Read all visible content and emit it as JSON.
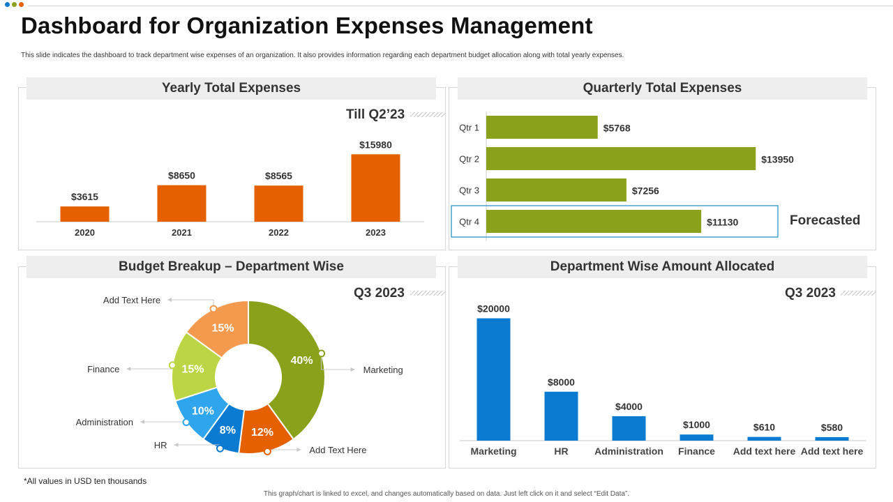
{
  "header": {
    "title": "Dashboard for Organization Expenses Management",
    "subtitle": "This slide indicates the dashboard to track department wise expenses of an organization. It also provides information regarding each department budget allocation along with total yearly expenses."
  },
  "colors": {
    "orange": "#E46000",
    "olive": "#8AA11B",
    "blue": "#0A7BD0",
    "pie_green": "#8AA11B",
    "pie_orange": "#E46000",
    "pie_blue": "#0A7BD0",
    "pie_lightblue": "#2FA5EE",
    "pie_lightgreen": "#BCD544",
    "pie_peach": "#F39A4E"
  },
  "panels": {
    "yearly": {
      "title": "Yearly Total Expenses",
      "period": "Till Q2’23"
    },
    "quarterly": {
      "title": "Quarterly Total Expenses",
      "forecast_label": "Forecasted"
    },
    "budget": {
      "title": "Budget Breakup – Department Wise",
      "period": "Q3 2023"
    },
    "dept": {
      "title": "Department  Wise Amount Allocated",
      "period": "Q3 2023"
    }
  },
  "chart_data": [
    {
      "id": "yearly",
      "type": "bar",
      "title": "Yearly Total Expenses",
      "categories": [
        "2020",
        "2021",
        "2022",
        "2023"
      ],
      "values": [
        3615,
        8650,
        8565,
        15980
      ],
      "value_labels": [
        "$3615",
        "$8650",
        "$8565",
        "$15980"
      ],
      "ylim": [
        0,
        19000
      ],
      "grid": false
    },
    {
      "id": "quarterly",
      "type": "bar",
      "orientation": "horizontal",
      "title": "Quarterly Total Expenses",
      "categories": [
        "Qtr 1",
        "Qtr 2",
        "Qtr 3",
        "Qtr 4"
      ],
      "values": [
        5768,
        13950,
        7256,
        11130
      ],
      "value_labels": [
        "$5768",
        "$13950",
        "$7256",
        "$11130"
      ],
      "xlim": [
        0,
        16000
      ],
      "highlighted": "Qtr 4"
    },
    {
      "id": "budget",
      "type": "pie",
      "donut": true,
      "title": "Budget Breakup – Department Wise",
      "slices": [
        {
          "label": "Marketing",
          "value": 40,
          "text": "40%",
          "color_key": "pie_green"
        },
        {
          "label": "Add Text Here",
          "value": 12,
          "text": "12%",
          "color_key": "pie_orange"
        },
        {
          "label": "HR",
          "value": 8,
          "text": "8%",
          "color_key": "pie_blue"
        },
        {
          "label": "Administration",
          "value": 10,
          "text": "10%",
          "color_key": "pie_lightblue"
        },
        {
          "label": "Finance",
          "value": 15,
          "text": "15%",
          "color_key": "pie_lightgreen"
        },
        {
          "label": "Add Text Here",
          "value": 15,
          "text": "15%",
          "color_key": "pie_peach"
        }
      ]
    },
    {
      "id": "dept",
      "type": "bar",
      "title": "Department  Wise Amount Allocated",
      "categories": [
        "Marketing",
        "HR",
        "Administration",
        "Finance",
        "Add text here",
        "Add text here"
      ],
      "values": [
        20000,
        8000,
        4000,
        1000,
        610,
        580
      ],
      "value_labels": [
        "$20000",
        "$8000",
        "$4000",
        "$1000",
        "$610",
        "$580"
      ],
      "ylim": [
        0,
        22000
      ],
      "grid": false
    }
  ],
  "footer": {
    "units_note": "*All values  in USD ten thousands",
    "excel_note": "This graph/chart is linked to excel, and changes automatically based on data. Just left click on it and select “Edit Data”."
  }
}
